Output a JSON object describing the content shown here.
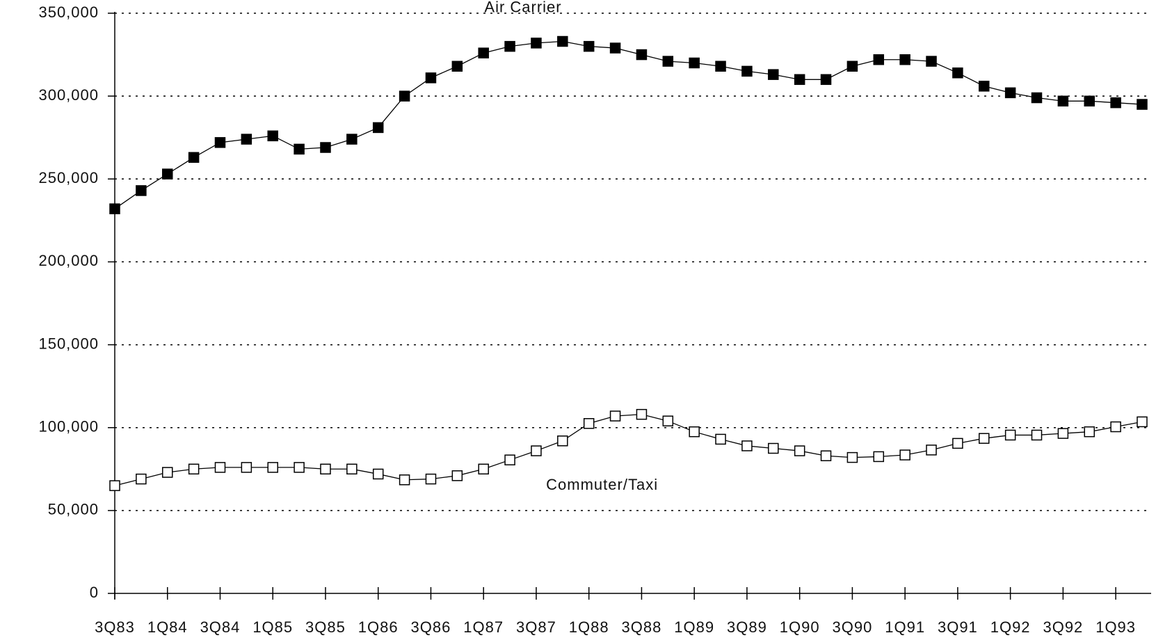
{
  "chart_data": {
    "type": "line",
    "categories": [
      "3Q83",
      null,
      "1Q84",
      null,
      "3Q84",
      null,
      "1Q85",
      null,
      "3Q85",
      null,
      "1Q86",
      null,
      "3Q86",
      null,
      "1Q87",
      null,
      "3Q87",
      null,
      "1Q88",
      null,
      "3Q88",
      null,
      "1Q89",
      null,
      "3Q89",
      null,
      "1Q90",
      null,
      "3Q90",
      null,
      "1Q91",
      null,
      "3Q91",
      null,
      "1Q92",
      null,
      "3Q92",
      null,
      "1Q93",
      null
    ],
    "series": [
      {
        "name": "Air Carrier",
        "color": "#000000",
        "marker": "filled-square",
        "values": [
          232000,
          243000,
          253000,
          263000,
          272000,
          274000,
          276000,
          268000,
          269000,
          274000,
          281000,
          300000,
          311000,
          318000,
          326000,
          330000,
          332000,
          333000,
          330000,
          329000,
          325000,
          321000,
          320000,
          318000,
          315000,
          313000,
          310000,
          310000,
          318000,
          322000,
          322000,
          321000,
          314000,
          306000,
          302000,
          299000,
          297000,
          297000,
          296000,
          295000
        ]
      },
      {
        "name": "Commuter/Taxi",
        "color": "#000000",
        "marker": "open-square",
        "values": [
          65000,
          69000,
          73000,
          75000,
          76000,
          76000,
          76000,
          76000,
          75000,
          75000,
          72000,
          68500,
          69000,
          71000,
          75000,
          80500,
          86000,
          92000,
          102500,
          107000,
          108000,
          104000,
          97500,
          93000,
          89000,
          87500,
          86000,
          83000,
          82000,
          82500,
          83500,
          86500,
          90500,
          93500,
          95500,
          95500,
          96500,
          97500,
          100500,
          103500
        ]
      }
    ],
    "ylim": [
      0,
      350000
    ],
    "yticks": [
      0,
      {
        "value": 50000,
        "label": "50,000"
      },
      {
        "value": 100000,
        "label": "100,000"
      },
      {
        "value": 150000,
        "label": "150,000"
      },
      {
        "value": 200000,
        "label": "200,000"
      },
      {
        "value": 250000,
        "label": "250,000"
      },
      {
        "value": 300000,
        "label": "300,000"
      },
      {
        "value": 350000,
        "label": "350,000"
      }
    ],
    "grid": true
  }
}
